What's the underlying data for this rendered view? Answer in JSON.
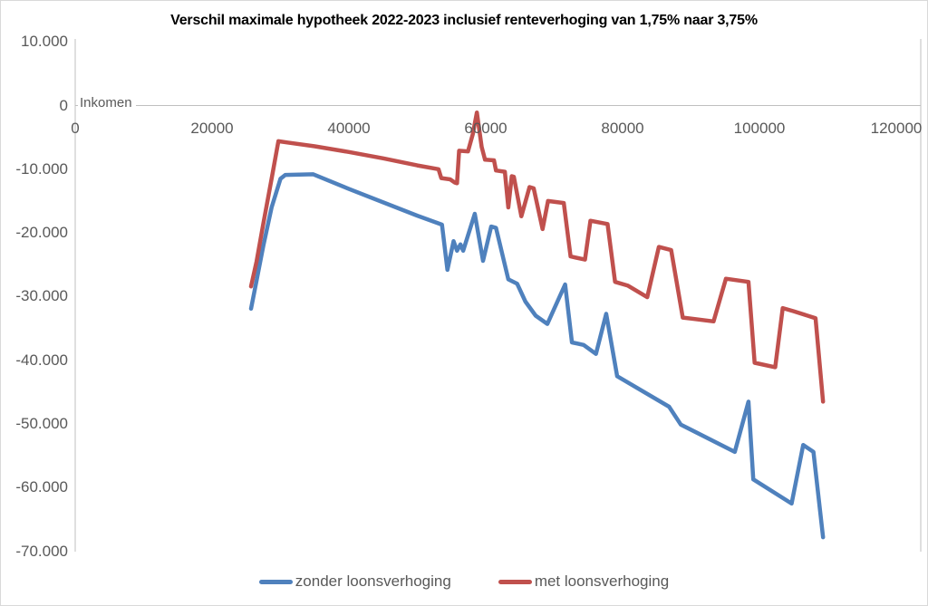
{
  "chart_data": {
    "type": "line",
    "title": "Verschil maximale hypotheek 2022-2023 inclusief renteverhoging van 1,75% naar 3,75%",
    "xlabel": "Inkomen",
    "ylabel": "",
    "xlim": [
      0,
      120000
    ],
    "ylim": [
      -70000,
      10000
    ],
    "grid": false,
    "legend_position": "bottom",
    "x_ticks": [
      {
        "value": 0,
        "label": "0"
      },
      {
        "value": 20000,
        "label": "20000"
      },
      {
        "value": 40000,
        "label": "40000"
      },
      {
        "value": 60000,
        "label": "60000"
      },
      {
        "value": 80000,
        "label": "80000"
      },
      {
        "value": 100000,
        "label": "100000"
      },
      {
        "value": 120000,
        "label": "120000"
      }
    ],
    "y_ticks": [
      {
        "value": 10000,
        "label": "10.000"
      },
      {
        "value": 0,
        "label": "0"
      },
      {
        "value": -10000,
        "label": "-10.000"
      },
      {
        "value": -20000,
        "label": "-20.000"
      },
      {
        "value": -30000,
        "label": "-30.000"
      },
      {
        "value": -40000,
        "label": "-40.000"
      },
      {
        "value": -50000,
        "label": "-50.000"
      },
      {
        "value": -60000,
        "label": "-60.000"
      },
      {
        "value": -70000,
        "label": "-70.000"
      }
    ],
    "series": [
      {
        "name": "zonder loonsverhoging",
        "color": "#4F81BD",
        "points": [
          [
            25700,
            -31900
          ],
          [
            26500,
            -27500
          ],
          [
            27500,
            -22000
          ],
          [
            28700,
            -16000
          ],
          [
            30000,
            -11500
          ],
          [
            30700,
            -10900
          ],
          [
            34800,
            -10800
          ],
          [
            40000,
            -13100
          ],
          [
            45000,
            -15200
          ],
          [
            50000,
            -17300
          ],
          [
            53600,
            -18700
          ],
          [
            54400,
            -25800
          ],
          [
            55300,
            -21300
          ],
          [
            55800,
            -22800
          ],
          [
            56300,
            -21800
          ],
          [
            56700,
            -22800
          ],
          [
            58400,
            -17000
          ],
          [
            59600,
            -24400
          ],
          [
            60800,
            -19000
          ],
          [
            61500,
            -19200
          ],
          [
            63300,
            -27300
          ],
          [
            64600,
            -28000
          ],
          [
            65800,
            -30800
          ],
          [
            67300,
            -33000
          ],
          [
            69000,
            -34300
          ],
          [
            71600,
            -28100
          ],
          [
            72600,
            -37200
          ],
          [
            74300,
            -37600
          ],
          [
            76100,
            -39000
          ],
          [
            77600,
            -32700
          ],
          [
            79200,
            -42500
          ],
          [
            86800,
            -47300
          ],
          [
            88500,
            -50100
          ],
          [
            96400,
            -54400
          ],
          [
            98400,
            -46500
          ],
          [
            99100,
            -58700
          ],
          [
            104700,
            -62500
          ],
          [
            106400,
            -53300
          ],
          [
            107900,
            -54400
          ],
          [
            109300,
            -67800
          ]
        ]
      },
      {
        "name": "met loonsverhoging",
        "color": "#C0504D",
        "points": [
          [
            25700,
            -28400
          ],
          [
            26500,
            -24500
          ],
          [
            27500,
            -18500
          ],
          [
            28700,
            -11500
          ],
          [
            29700,
            -5600
          ],
          [
            31000,
            -5800
          ],
          [
            35000,
            -6400
          ],
          [
            40000,
            -7300
          ],
          [
            45000,
            -8300
          ],
          [
            50000,
            -9400
          ],
          [
            53100,
            -10000
          ],
          [
            53500,
            -11400
          ],
          [
            54800,
            -11600
          ],
          [
            55500,
            -12100
          ],
          [
            55800,
            -12200
          ],
          [
            56100,
            -7100
          ],
          [
            57400,
            -7200
          ],
          [
            58100,
            -4500
          ],
          [
            58700,
            -1100
          ],
          [
            59400,
            -6500
          ],
          [
            59900,
            -8500
          ],
          [
            61200,
            -8600
          ],
          [
            61500,
            -10200
          ],
          [
            62800,
            -10400
          ],
          [
            63300,
            -16000
          ],
          [
            63800,
            -11100
          ],
          [
            64100,
            -11200
          ],
          [
            65200,
            -17400
          ],
          [
            66400,
            -12800
          ],
          [
            67000,
            -13000
          ],
          [
            68300,
            -19400
          ],
          [
            69100,
            -15000
          ],
          [
            71400,
            -15300
          ],
          [
            72400,
            -23700
          ],
          [
            74500,
            -24200
          ],
          [
            75300,
            -18100
          ],
          [
            77800,
            -18600
          ],
          [
            78900,
            -27700
          ],
          [
            80800,
            -28300
          ],
          [
            83600,
            -30100
          ],
          [
            85300,
            -22200
          ],
          [
            87100,
            -22700
          ],
          [
            88800,
            -33300
          ],
          [
            93300,
            -33900
          ],
          [
            95100,
            -27200
          ],
          [
            98400,
            -27700
          ],
          [
            99300,
            -40400
          ],
          [
            102300,
            -41100
          ],
          [
            103400,
            -31800
          ],
          [
            105000,
            -32300
          ],
          [
            108200,
            -33400
          ],
          [
            109300,
            -46500
          ]
        ]
      }
    ],
    "axis_color": "#BFBFBF",
    "tick_text_color": "#595959"
  }
}
